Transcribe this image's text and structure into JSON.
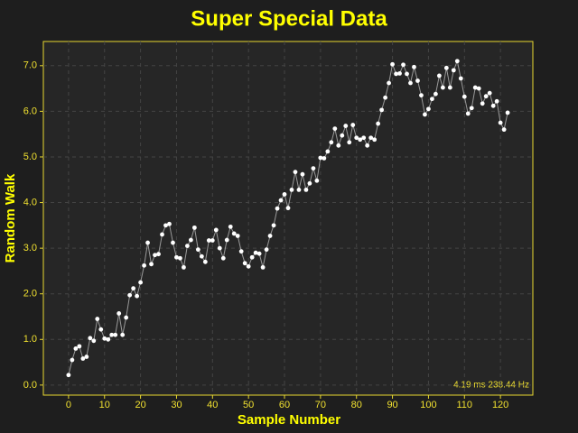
{
  "chart_data": {
    "type": "line",
    "title": "Super Special Data",
    "xlabel": "Sample Number",
    "ylabel": "Random Walk",
    "annotation": "4.19 ms 238.44 Hz",
    "x": [
      0,
      1,
      2,
      3,
      4,
      5,
      6,
      7,
      8,
      9,
      10,
      11,
      12,
      13,
      14,
      15,
      16,
      17,
      18,
      19,
      20,
      21,
      22,
      23,
      24,
      25,
      26,
      27,
      28,
      29,
      30,
      31,
      32,
      33,
      34,
      35,
      36,
      37,
      38,
      39,
      40,
      41,
      42,
      43,
      44,
      45,
      46,
      47,
      48,
      49,
      50,
      51,
      52,
      53,
      54,
      55,
      56,
      57,
      58,
      59,
      60,
      61,
      62,
      63,
      64,
      65,
      66,
      67,
      68,
      69,
      70,
      71,
      72,
      73,
      74,
      75,
      76,
      77,
      78,
      79,
      80,
      81,
      82,
      83,
      84,
      85,
      86,
      87,
      88,
      89,
      90,
      91,
      92,
      93,
      94,
      95,
      96,
      97,
      98,
      99,
      100,
      101,
      102,
      103,
      104,
      105,
      106,
      107,
      108,
      109,
      110,
      111,
      112,
      113,
      114,
      115,
      116,
      117,
      118,
      119,
      120,
      121,
      122
    ],
    "values": [
      0.22,
      0.55,
      0.8,
      0.85,
      0.58,
      0.62,
      1.03,
      0.97,
      1.45,
      1.22,
      1.02,
      1.0,
      1.1,
      1.1,
      1.57,
      1.1,
      1.48,
      1.97,
      2.12,
      1.95,
      2.25,
      2.62,
      3.12,
      2.65,
      2.85,
      2.87,
      3.3,
      3.5,
      3.53,
      3.12,
      2.8,
      2.78,
      2.58,
      3.05,
      3.18,
      3.45,
      2.97,
      2.82,
      2.7,
      3.17,
      3.17,
      3.4,
      3.0,
      2.78,
      3.18,
      3.47,
      3.32,
      3.27,
      2.93,
      2.67,
      2.6,
      2.8,
      2.9,
      2.88,
      2.58,
      2.97,
      3.27,
      3.5,
      3.87,
      4.05,
      4.18,
      3.88,
      4.28,
      4.67,
      4.28,
      4.62,
      4.28,
      4.42,
      4.75,
      4.48,
      4.98,
      4.97,
      5.12,
      5.32,
      5.62,
      5.25,
      5.47,
      5.68,
      5.32,
      5.7,
      5.42,
      5.38,
      5.42,
      5.25,
      5.42,
      5.38,
      5.73,
      6.03,
      6.3,
      6.62,
      7.03,
      6.82,
      6.83,
      7.02,
      6.82,
      6.62,
      6.97,
      6.67,
      6.35,
      5.93,
      6.05,
      6.27,
      6.38,
      6.78,
      6.52,
      6.95,
      6.52,
      6.9,
      7.1,
      6.72,
      6.32,
      5.95,
      6.07,
      6.52,
      6.5,
      6.17,
      6.33,
      6.4,
      6.12,
      6.22,
      5.75,
      5.6,
      5.97
    ],
    "color": "#ffffff",
    "line_color": "#9a9a9a",
    "xlim": [
      -7,
      129
    ],
    "ylim": [
      -0.22,
      7.53
    ],
    "xticks": [
      0,
      10,
      20,
      30,
      40,
      50,
      60,
      70,
      80,
      90,
      100,
      110,
      120
    ],
    "yticks": [
      {
        "value": 0,
        "label": "0.0"
      },
      {
        "value": 1,
        "label": "1.0"
      },
      {
        "value": 2,
        "label": "2.0"
      },
      {
        "value": 3,
        "label": "3.0"
      },
      {
        "value": 4,
        "label": "4.0"
      },
      {
        "value": 5,
        "label": "5.0"
      },
      {
        "value": 6,
        "label": "6.0"
      },
      {
        "value": 7,
        "label": "7.0"
      }
    ],
    "grid": true
  }
}
